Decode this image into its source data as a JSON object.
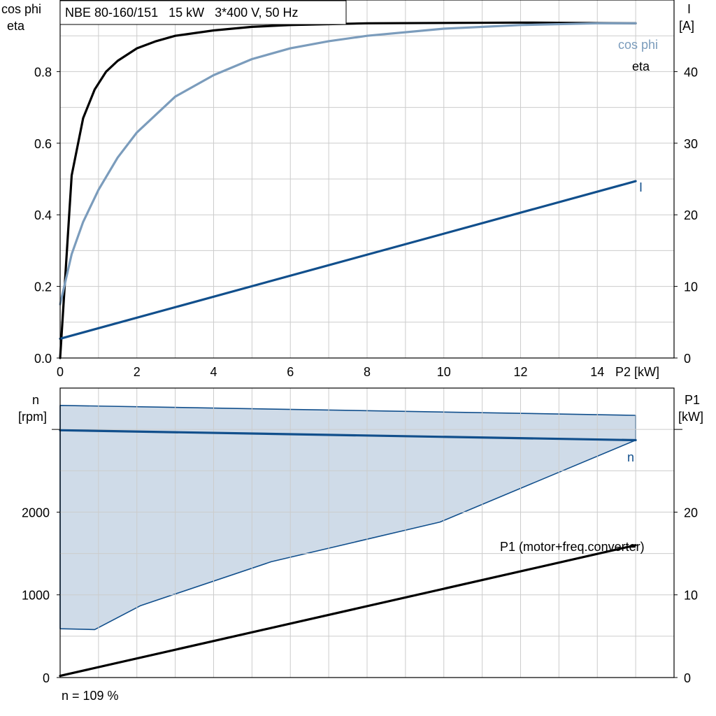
{
  "colors": {
    "eta": "#000000",
    "cosphi": "#7b9cbc",
    "current": "#114f8c",
    "speed": "#114f8c",
    "speed_band_fill": "#cfdbe8",
    "power_p1": "#000000",
    "grid": "#cccccc"
  },
  "chart_data": [
    {
      "type": "line",
      "title": "NBE 80-160/151   15 kW   3*400 V, 50 Hz",
      "ylabel_left": [
        "cos phi",
        "eta"
      ],
      "ylabel_right": [
        "I",
        "[A]"
      ],
      "xlabel": "P2 [kW]",
      "xlim": [
        0,
        16
      ],
      "ylim_left": [
        0,
        1.0
      ],
      "ylim_right": [
        0,
        50
      ],
      "x_ticks": [
        "0",
        "2",
        "4",
        "6",
        "8",
        "10",
        "12",
        "14"
      ],
      "y_ticks_left": [
        "0.0",
        "0.2",
        "0.4",
        "0.6",
        "0.8"
      ],
      "y_ticks_right": [
        "0",
        "10",
        "20",
        "30",
        "40"
      ],
      "grid": true,
      "series": [
        {
          "name": "eta",
          "axis": "left",
          "x": [
            0,
            0.3,
            0.6,
            0.9,
            1.2,
            1.5,
            2,
            2.5,
            3,
            4,
            5,
            6,
            8,
            10,
            12,
            15
          ],
          "y": [
            0.0,
            0.51,
            0.67,
            0.75,
            0.8,
            0.83,
            0.865,
            0.885,
            0.9,
            0.915,
            0.925,
            0.93,
            0.935,
            0.936,
            0.937,
            0.935
          ]
        },
        {
          "name": "cos phi",
          "axis": "left",
          "x": [
            0,
            0.3,
            0.6,
            1,
            1.5,
            2,
            3,
            4,
            5,
            6,
            7,
            8,
            10,
            12,
            14,
            15
          ],
          "y": [
            0.15,
            0.29,
            0.38,
            0.47,
            0.56,
            0.63,
            0.73,
            0.79,
            0.835,
            0.865,
            0.885,
            0.9,
            0.92,
            0.93,
            0.935,
            0.935
          ]
        },
        {
          "name": "I",
          "axis": "right",
          "x": [
            0,
            15
          ],
          "y": [
            2.7,
            24.7
          ]
        }
      ]
    },
    {
      "type": "area",
      "ylabel_left": [
        "n",
        "[rpm]"
      ],
      "ylabel_right": [
        "P1",
        "[kW]"
      ],
      "xlim": [
        0,
        16
      ],
      "ylim_left": [
        0,
        3500
      ],
      "ylim_right": [
        0,
        35
      ],
      "y_ticks_left": [
        "0",
        "1000",
        "2000"
      ],
      "y_ticks_right": [
        "0",
        "10",
        "20"
      ],
      "grid": true,
      "footnote": "n = 109 %",
      "series": [
        {
          "name": "n",
          "role": "nominal speed line",
          "x": [
            0,
            15
          ],
          "y": [
            2990,
            2870
          ]
        },
        {
          "name": "speed range",
          "role": "band",
          "upper_x": [
            0,
            15,
            15
          ],
          "upper_y": [
            3290,
            3170,
            2870
          ],
          "lower_x": [
            0,
            0.9,
            2.1,
            5.5,
            9.9,
            15
          ],
          "lower_y": [
            590,
            580,
            870,
            1400,
            1880,
            2870
          ]
        },
        {
          "name": "P1 (motor+freq.converter)",
          "role": "input power",
          "x": [
            0,
            15
          ],
          "y": [
            0.2,
            16.0
          ]
        }
      ]
    }
  ]
}
